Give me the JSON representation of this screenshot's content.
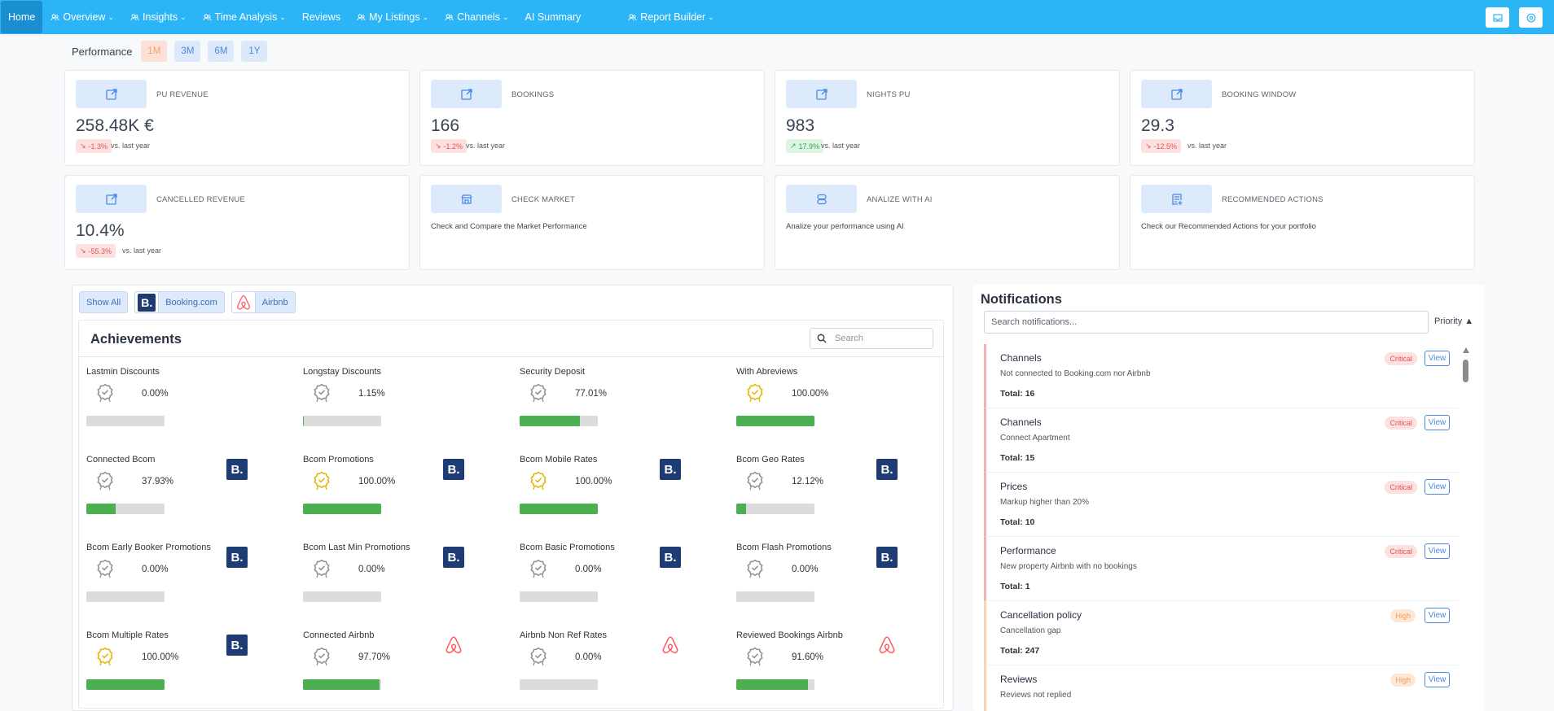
{
  "nav": {
    "home": "Home",
    "items": [
      {
        "label": "Overview",
        "icon": "users-icon",
        "dropdown": true
      },
      {
        "label": "Insights",
        "icon": "users-icon",
        "dropdown": true
      },
      {
        "label": "Time Analysis",
        "icon": "users-icon",
        "dropdown": true
      },
      {
        "label": "Reviews",
        "icon": "",
        "dropdown": false
      },
      {
        "label": "My Listings",
        "icon": "users-icon",
        "dropdown": true
      },
      {
        "label": "Channels",
        "icon": "users-icon",
        "dropdown": true
      },
      {
        "label": "AI Summary",
        "icon": "",
        "dropdown": false
      },
      {
        "label": "Report Builder",
        "icon": "users-icon",
        "dropdown": true
      }
    ]
  },
  "performance": {
    "label": "Performance",
    "ranges": [
      "1M",
      "3M",
      "6M",
      "1Y"
    ],
    "active": "1M"
  },
  "kpis": [
    {
      "title": "PU REVENUE",
      "value": "258.48K €",
      "change": "-1.3%",
      "direction": "down",
      "vs": "vs. last year"
    },
    {
      "title": "BOOKINGS",
      "value": "166",
      "change": "-1.2%",
      "direction": "down",
      "vs": "vs. last year"
    },
    {
      "title": "NIGHTS PU",
      "value": "983",
      "change": "17.9%",
      "direction": "up",
      "vs": "vs. last year"
    },
    {
      "title": "BOOKING WINDOW",
      "value": "29.3",
      "change": "-12.5%",
      "direction": "down",
      "vs": "vs. last year"
    },
    {
      "title": "CANCELLED REVENUE",
      "value": "10.4%",
      "change": "-55.3%",
      "direction": "down",
      "vs": "vs. last year"
    }
  ],
  "actions": [
    {
      "title": "CHECK MARKET",
      "desc": "Check and Compare the Market Performance",
      "icon": "store-icon"
    },
    {
      "title": "ANALIZE WITH AI",
      "desc": "Analize your performance using AI",
      "icon": "database-icon"
    },
    {
      "title": "RECOMMENDED ACTIONS",
      "desc": "Check our Recommended Actions for your portfolio",
      "icon": "list-plus-icon"
    }
  ],
  "filters": {
    "show_all": "Show All",
    "booking": "Booking.com",
    "airbnb": "Airbnb"
  },
  "achievements": {
    "title": "Achievements",
    "search_placeholder": "Search",
    "items": [
      {
        "name": "Lastmin Discounts",
        "pct": "0.00%",
        "value": 0,
        "channel": "",
        "gold": false
      },
      {
        "name": "Longstay Discounts",
        "pct": "1.15%",
        "value": 1.15,
        "channel": "",
        "gold": false
      },
      {
        "name": "Security Deposit",
        "pct": "77.01%",
        "value": 77.01,
        "channel": "",
        "gold": false
      },
      {
        "name": "With Abreviews",
        "pct": "100.00%",
        "value": 100,
        "channel": "",
        "gold": true
      },
      {
        "name": "Connected Bcom",
        "pct": "37.93%",
        "value": 37.93,
        "channel": "booking",
        "gold": false
      },
      {
        "name": "Bcom Promotions",
        "pct": "100.00%",
        "value": 100,
        "channel": "booking",
        "gold": true
      },
      {
        "name": "Bcom Mobile Rates",
        "pct": "100.00%",
        "value": 100,
        "channel": "booking",
        "gold": true
      },
      {
        "name": "Bcom Geo Rates",
        "pct": "12.12%",
        "value": 12.12,
        "channel": "booking",
        "gold": false
      },
      {
        "name": "Bcom Early Booker Promotions",
        "pct": "0.00%",
        "value": 0,
        "channel": "booking",
        "gold": false
      },
      {
        "name": "Bcom Last Min Promotions",
        "pct": "0.00%",
        "value": 0,
        "channel": "booking",
        "gold": false
      },
      {
        "name": "Bcom Basic Promotions",
        "pct": "0.00%",
        "value": 0,
        "channel": "booking",
        "gold": false
      },
      {
        "name": "Bcom Flash Promotions",
        "pct": "0.00%",
        "value": 0,
        "channel": "booking",
        "gold": false
      },
      {
        "name": "Bcom Multiple Rates",
        "pct": "100.00%",
        "value": 100,
        "channel": "booking",
        "gold": true
      },
      {
        "name": "Connected Airbnb",
        "pct": "97.70%",
        "value": 97.7,
        "channel": "airbnb",
        "gold": false
      },
      {
        "name": "Airbnb Non Ref Rates",
        "pct": "0.00%",
        "value": 0,
        "channel": "airbnb",
        "gold": false
      },
      {
        "name": "Reviewed Bookings Airbnb",
        "pct": "91.60%",
        "value": 91.6,
        "channel": "airbnb",
        "gold": false
      }
    ]
  },
  "notifications": {
    "title": "Notifications",
    "search_placeholder": "Search notifications...",
    "sort_label": "Priority ▲",
    "view_label": "View",
    "items": [
      {
        "title": "Channels",
        "desc": "Not connected to Booking.com nor Airbnb",
        "total": "Total: 16",
        "priority": "Critical"
      },
      {
        "title": "Channels",
        "desc": "Connect Apartment",
        "total": "Total: 15",
        "priority": "Critical"
      },
      {
        "title": "Prices",
        "desc": "Markup higher than 20%",
        "total": "Total: 10",
        "priority": "Critical"
      },
      {
        "title": "Performance",
        "desc": "New property Airbnb with no bookings",
        "total": "Total: 1",
        "priority": "Critical"
      },
      {
        "title": "Cancellation policy",
        "desc": "Cancellation gap",
        "total": "Total: 247",
        "priority": "High"
      },
      {
        "title": "Reviews",
        "desc": "Reviews not replied",
        "total": "",
        "priority": "High"
      }
    ]
  },
  "colors": {
    "nav_bg": "#2bb5f7",
    "progress_fill": "#4caf50",
    "critical": "#e25353",
    "high": "#f29a5b",
    "gold_medal": "#e4b400"
  }
}
